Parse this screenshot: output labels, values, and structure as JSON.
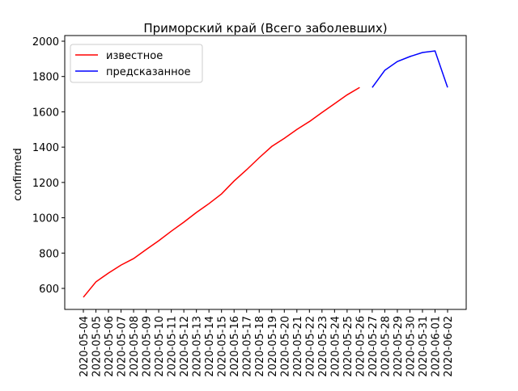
{
  "chart_data": {
    "type": "line",
    "title": "Приморский край (Всего заболевших)",
    "y_label": "confirmed",
    "categories": [
      "2020-05-04",
      "2020-05-05",
      "2020-05-06",
      "2020-05-07",
      "2020-05-08",
      "2020-05-09",
      "2020-05-10",
      "2020-05-11",
      "2020-05-12",
      "2020-05-13",
      "2020-05-14",
      "2020-05-15",
      "2020-05-16",
      "2020-05-17",
      "2020-05-18",
      "2020-05-19",
      "2020-05-20",
      "2020-05-21",
      "2020-05-22",
      "2020-05-23",
      "2020-05-24",
      "2020-05-25",
      "2020-05-26",
      "2020-05-27",
      "2020-05-28",
      "2020-05-29",
      "2020-05-30",
      "2020-05-31",
      "2020-06-01",
      "2020-06-02"
    ],
    "series": [
      {
        "name": "известное",
        "color": "#ff0000",
        "values": [
          550,
          637,
          687,
          732,
          769,
          820,
          870,
          924,
          975,
          1030,
          1080,
          1135,
          1208,
          1272,
          1340,
          1404,
          1450,
          1500,
          1545,
          1596,
          1646,
          1696,
          1738,
          null,
          null,
          null,
          null,
          null,
          null,
          null
        ]
      },
      {
        "name": "предсказанное",
        "color": "#0000ff",
        "values": [
          null,
          null,
          null,
          null,
          null,
          null,
          null,
          null,
          null,
          null,
          null,
          null,
          null,
          null,
          null,
          null,
          null,
          null,
          null,
          null,
          null,
          null,
          null,
          1738,
          1835,
          1885,
          1913,
          1936,
          1945,
          1738
        ]
      }
    ],
    "ylim": [
      481,
      2032
    ],
    "yticks": [
      600,
      800,
      1000,
      1200,
      1400,
      1600,
      1800,
      2000
    ],
    "legend": "upper left"
  }
}
